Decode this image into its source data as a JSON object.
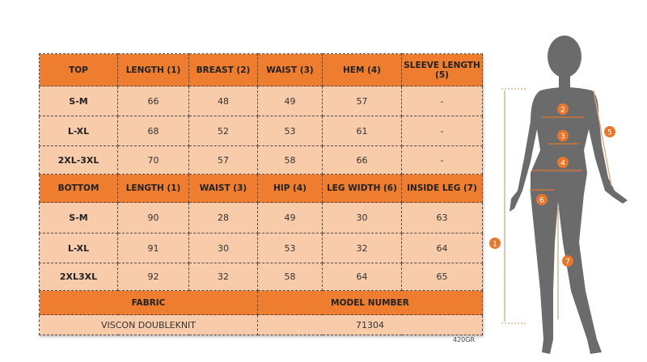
{
  "top": {
    "headers": [
      "TOP",
      "LENGTH (1)",
      "BREAST (2)",
      "WAIST (3)",
      "HEM (4)",
      "SLEEVE LENGTH (5)"
    ],
    "rows": [
      [
        "S-M",
        "66",
        "48",
        "49",
        "57",
        "-"
      ],
      [
        "L-XL",
        "68",
        "52",
        "53",
        "61",
        "-"
      ],
      [
        "2XL-3XL",
        "70",
        "57",
        "58",
        "66",
        "-"
      ]
    ]
  },
  "bottom": {
    "headers": [
      "BOTTOM",
      "LENGTH (1)",
      "WAIST (3)",
      "HIP (4)",
      "LEG WIDTH (6)",
      "INSIDE LEG (7)"
    ],
    "rows": [
      [
        "S-M",
        "90",
        "28",
        "49",
        "30",
        "63"
      ],
      [
        "L-XL",
        "91",
        "30",
        "53",
        "32",
        "64"
      ],
      [
        "2XL3XL",
        "92",
        "32",
        "58",
        "64",
        "65"
      ]
    ]
  },
  "info": {
    "fabric_label": "FABRIC",
    "model_label": "MODEL NUMBER",
    "fabric_value": "VISCON DOUBLEKNIT",
    "model_value": "71304"
  },
  "note": "420GR",
  "figure": {
    "markers": [
      "1",
      "2",
      "3",
      "4",
      "5",
      "6",
      "7"
    ]
  },
  "colors": {
    "header": "#ee7d30",
    "row": "#f8cbaa",
    "silhouette": "#6b6b6b",
    "marker": "#e6782e"
  }
}
